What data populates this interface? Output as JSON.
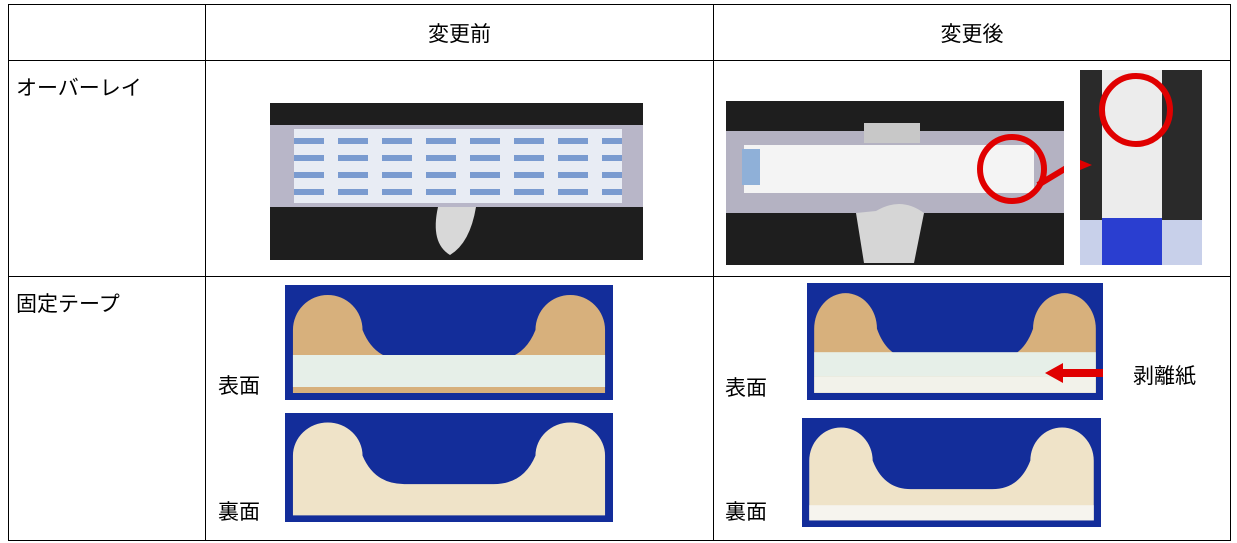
{
  "table": {
    "header": [
      "",
      "変更前",
      "変更後"
    ],
    "rows": [
      {
        "label": "オーバーレイ"
      },
      {
        "label": "固定テープ",
        "before": {
          "front": "表面",
          "back": "裏面"
        },
        "after": {
          "front": "表面",
          "back": "裏面",
          "annotation": "剥離紙"
        }
      }
    ]
  }
}
